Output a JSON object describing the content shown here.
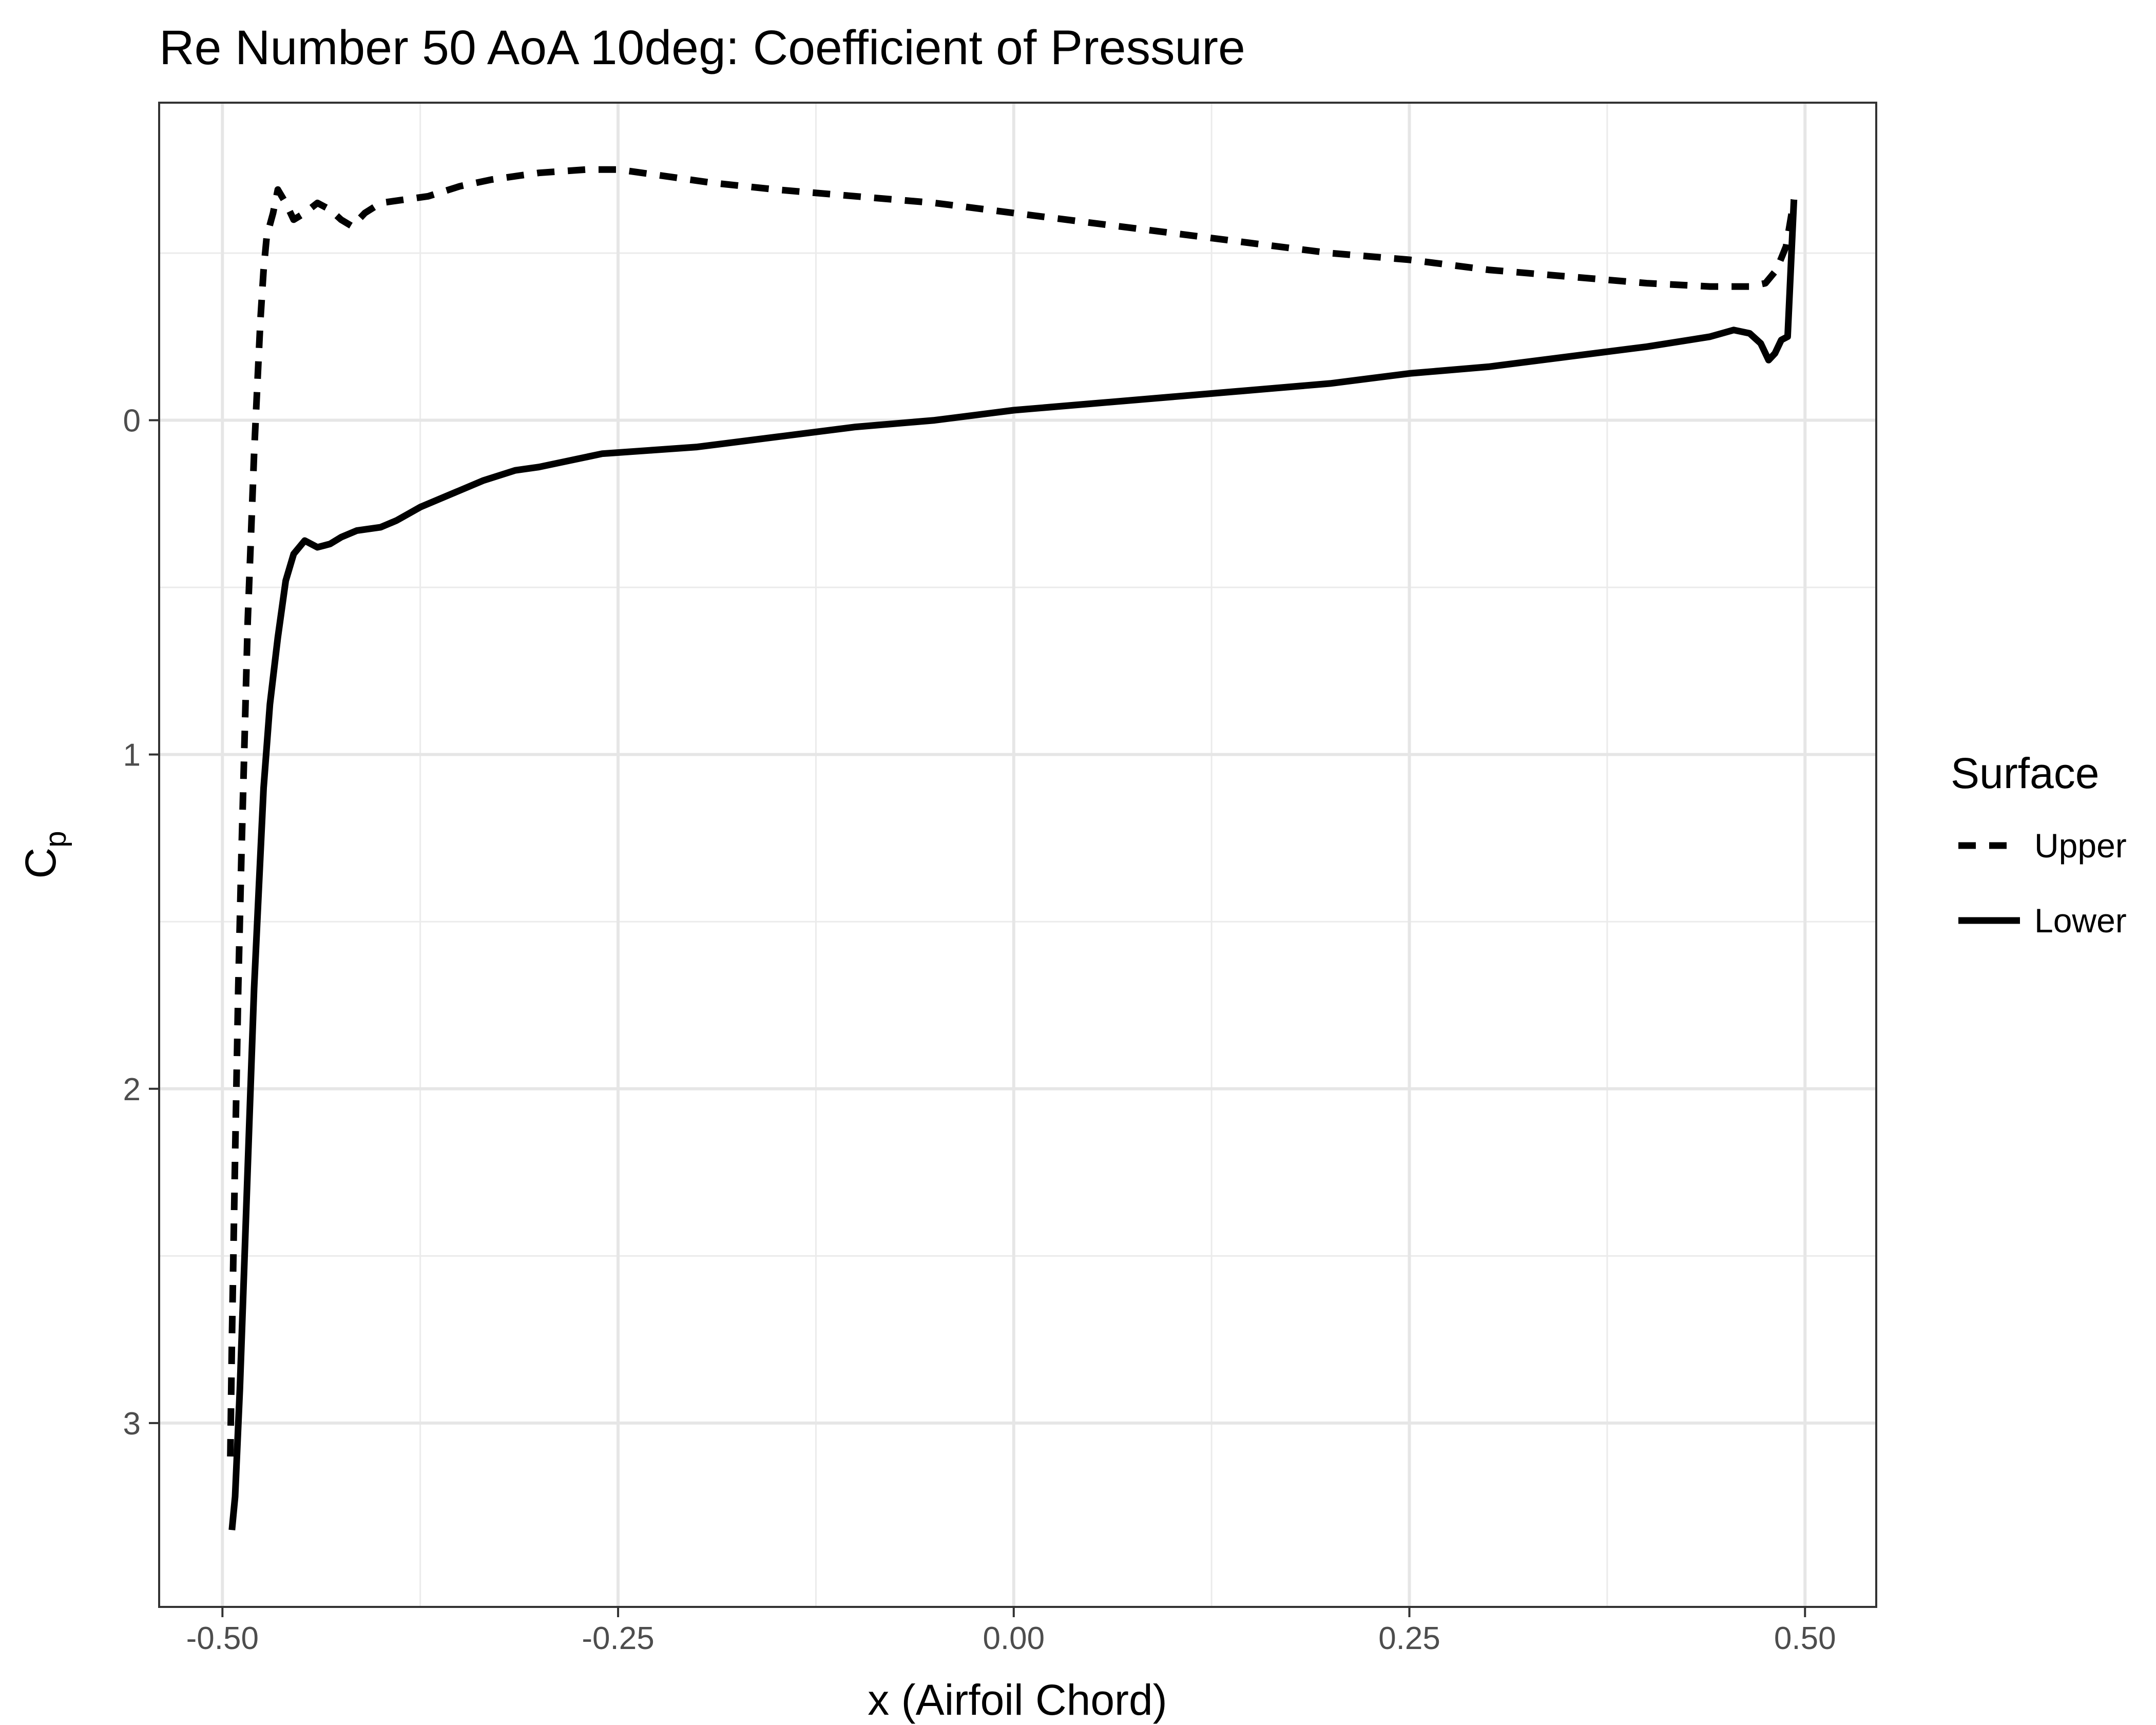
{
  "chart_data": {
    "type": "line",
    "title": "Re Number 50 AoA 10deg: Coefficient of Pressure",
    "xlabel": "x (Airfoil Chord)",
    "ylabel": {
      "main": "C",
      "sub": "p"
    },
    "xlim": [
      -0.54,
      0.545
    ],
    "ylim": [
      -0.95,
      3.55
    ],
    "y_reversed": true,
    "grid": true,
    "x_ticks": [
      -0.5,
      -0.25,
      0.0,
      0.25,
      0.5
    ],
    "x_tick_labels": [
      "-0.50",
      "-0.25",
      "0.00",
      "0.25",
      "0.50"
    ],
    "y_ticks": [
      0,
      1,
      2,
      3
    ],
    "y_tick_labels": [
      "0",
      "1",
      "2",
      "3"
    ],
    "x_minor": [
      -0.375,
      -0.125,
      0.125,
      0.375
    ],
    "y_minor": [
      -0.5,
      0.5,
      1.5,
      2.5
    ],
    "legend": {
      "title": "Surface",
      "position": "right",
      "entries": [
        "Upper",
        "Lower"
      ]
    },
    "series": [
      {
        "name": "Upper",
        "style": "dashed",
        "points": [
          [
            -0.495,
            3.1
          ],
          [
            -0.494,
            2.75
          ],
          [
            -0.492,
            2.2
          ],
          [
            -0.49,
            1.7
          ],
          [
            -0.488,
            1.3
          ],
          [
            -0.486,
            0.95
          ],
          [
            -0.484,
            0.6
          ],
          [
            -0.482,
            0.35
          ],
          [
            -0.48,
            0.1
          ],
          [
            -0.478,
            -0.1
          ],
          [
            -0.476,
            -0.3
          ],
          [
            -0.474,
            -0.45
          ],
          [
            -0.472,
            -0.55
          ],
          [
            -0.468,
            -0.62
          ],
          [
            -0.465,
            -0.69
          ],
          [
            -0.46,
            -0.65
          ],
          [
            -0.455,
            -0.6
          ],
          [
            -0.448,
            -0.62
          ],
          [
            -0.44,
            -0.65
          ],
          [
            -0.432,
            -0.63
          ],
          [
            -0.425,
            -0.6
          ],
          [
            -0.418,
            -0.58
          ],
          [
            -0.41,
            -0.62
          ],
          [
            -0.4,
            -0.65
          ],
          [
            -0.385,
            -0.66
          ],
          [
            -0.37,
            -0.67
          ],
          [
            -0.35,
            -0.7
          ],
          [
            -0.33,
            -0.72
          ],
          [
            -0.3,
            -0.74
          ],
          [
            -0.27,
            -0.75
          ],
          [
            -0.25,
            -0.75
          ],
          [
            -0.22,
            -0.73
          ],
          [
            -0.19,
            -0.71
          ],
          [
            -0.15,
            -0.69
          ],
          [
            -0.1,
            -0.67
          ],
          [
            -0.05,
            -0.65
          ],
          [
            0.0,
            -0.62
          ],
          [
            0.05,
            -0.59
          ],
          [
            0.1,
            -0.56
          ],
          [
            0.15,
            -0.53
          ],
          [
            0.2,
            -0.5
          ],
          [
            0.25,
            -0.48
          ],
          [
            0.3,
            -0.45
          ],
          [
            0.35,
            -0.43
          ],
          [
            0.4,
            -0.41
          ],
          [
            0.44,
            -0.4
          ],
          [
            0.465,
            -0.4
          ],
          [
            0.475,
            -0.41
          ],
          [
            0.482,
            -0.45
          ],
          [
            0.488,
            -0.52
          ],
          [
            0.493,
            -0.66
          ]
        ]
      },
      {
        "name": "Lower",
        "style": "solid",
        "points": [
          [
            -0.494,
            3.32
          ],
          [
            -0.492,
            3.22
          ],
          [
            -0.489,
            2.9
          ],
          [
            -0.486,
            2.5
          ],
          [
            -0.483,
            2.1
          ],
          [
            -0.48,
            1.7
          ],
          [
            -0.477,
            1.4
          ],
          [
            -0.474,
            1.1
          ],
          [
            -0.47,
            0.85
          ],
          [
            -0.465,
            0.65
          ],
          [
            -0.46,
            0.48
          ],
          [
            -0.455,
            0.4
          ],
          [
            -0.448,
            0.36
          ],
          [
            -0.44,
            0.38
          ],
          [
            -0.432,
            0.37
          ],
          [
            -0.425,
            0.35
          ],
          [
            -0.415,
            0.33
          ],
          [
            -0.4,
            0.32
          ],
          [
            -0.39,
            0.3
          ],
          [
            -0.375,
            0.26
          ],
          [
            -0.355,
            0.22
          ],
          [
            -0.335,
            0.18
          ],
          [
            -0.315,
            0.15
          ],
          [
            -0.3,
            0.14
          ],
          [
            -0.28,
            0.12
          ],
          [
            -0.26,
            0.1
          ],
          [
            -0.23,
            0.09
          ],
          [
            -0.2,
            0.08
          ],
          [
            -0.15,
            0.05
          ],
          [
            -0.1,
            0.02
          ],
          [
            -0.05,
            0.0
          ],
          [
            0.0,
            -0.03
          ],
          [
            0.05,
            -0.05
          ],
          [
            0.1,
            -0.07
          ],
          [
            0.15,
            -0.09
          ],
          [
            0.2,
            -0.11
          ],
          [
            0.25,
            -0.14
          ],
          [
            0.3,
            -0.16
          ],
          [
            0.35,
            -0.19
          ],
          [
            0.4,
            -0.22
          ],
          [
            0.44,
            -0.25
          ],
          [
            0.455,
            -0.27
          ],
          [
            0.465,
            -0.26
          ],
          [
            0.472,
            -0.23
          ],
          [
            0.477,
            -0.18
          ],
          [
            0.481,
            -0.2
          ],
          [
            0.485,
            -0.24
          ],
          [
            0.489,
            -0.25
          ],
          [
            0.493,
            -0.66
          ]
        ]
      }
    ]
  }
}
